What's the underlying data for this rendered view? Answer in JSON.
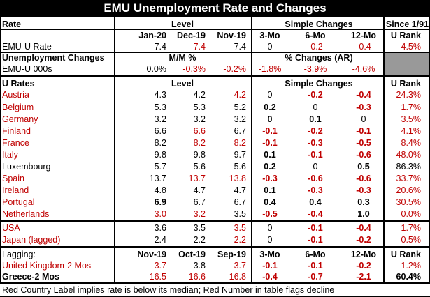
{
  "title": "EMU Unemployment Rate and Changes",
  "colors": {
    "red": "#c00000",
    "black": "#000000",
    "header_bg": "#000000",
    "gray_cell": "#999999"
  },
  "rows": [
    {
      "y": 27,
      "cells": [
        {
          "t": "Rate",
          "b": true
        },
        {
          "t": "Level",
          "b": true,
          "hdr": "level"
        },
        {
          "t": "Simple Changes",
          "b": true,
          "hdr": "simple"
        },
        {
          "t": "Since 1/91",
          "b": true,
          "hdr": "rank"
        }
      ]
    },
    {
      "y": 43,
      "cells": [
        {
          "t": "",
          "col": 0
        },
        {
          "t": "Jan-20",
          "b": true,
          "col": 1
        },
        {
          "t": "Dec-19",
          "b": true,
          "col": 2
        },
        {
          "t": "Nov-19",
          "b": true,
          "col": 3
        },
        {
          "t": "3-Mo",
          "b": true,
          "col": 4
        },
        {
          "t": "6-Mo",
          "b": true,
          "col": 5
        },
        {
          "t": "12-Mo",
          "b": true,
          "col": 6
        },
        {
          "t": "U Rank",
          "b": true,
          "col": 7
        }
      ]
    },
    {
      "y": 59,
      "cells": [
        {
          "t": "EMU-U Rate",
          "col": 0
        },
        {
          "t": "7.4",
          "col": 1
        },
        {
          "t": "7.4",
          "r": true,
          "col": 2
        },
        {
          "t": "7.4",
          "col": 3
        },
        {
          "t": "0",
          "col": 4
        },
        {
          "t": "-0.2",
          "r": true,
          "col": 5
        },
        {
          "t": "-0.4",
          "r": true,
          "col": 6
        },
        {
          "t": "4.5%",
          "r": true,
          "col": 7
        }
      ]
    },
    {
      "y": 75,
      "cells": [
        {
          "t": "Unemployment Changes",
          "b": true,
          "col": 0
        },
        {
          "t": "M/M %",
          "b": true,
          "hdr": "level"
        },
        {
          "t": "% Changes (AR)",
          "b": true,
          "hdr": "simple"
        }
      ]
    },
    {
      "y": 91,
      "cells": [
        {
          "t": "EMU-U 000s",
          "col": 0
        },
        {
          "t": "0.0%",
          "col": 1
        },
        {
          "t": "-0.3%",
          "r": true,
          "col": 2
        },
        {
          "t": "-0.2%",
          "r": true,
          "col": 3
        },
        {
          "t": "-1.8%",
          "r": true,
          "col": 4
        },
        {
          "t": "-3.9%",
          "r": true,
          "col": 5
        },
        {
          "t": "-4.6%",
          "r": true,
          "col": 6
        }
      ]
    },
    {
      "y": 112,
      "cells": [
        {
          "t": "U Rates",
          "b": true,
          "col": 0
        },
        {
          "t": "Level",
          "b": true,
          "hdr": "level"
        },
        {
          "t": "Simple Changes",
          "b": true,
          "hdr": "simple"
        },
        {
          "t": "U Rank",
          "b": true,
          "col": 7
        }
      ]
    },
    {
      "y": 128,
      "cells": [
        {
          "t": "Austria",
          "r": true,
          "col": 0
        },
        {
          "t": "4.3",
          "col": 1
        },
        {
          "t": "4.2",
          "col": 2
        },
        {
          "t": "4.2",
          "r": true,
          "col": 3
        },
        {
          "t": "0",
          "col": 4
        },
        {
          "t": "-0.2",
          "r": true,
          "b": true,
          "col": 5
        },
        {
          "t": "-0.4",
          "r": true,
          "b": true,
          "col": 6
        },
        {
          "t": "24.3%",
          "r": true,
          "col": 7
        }
      ]
    },
    {
      "y": 146,
      "cells": [
        {
          "t": "Belgium",
          "r": true,
          "col": 0
        },
        {
          "t": "5.3",
          "col": 1
        },
        {
          "t": "5.3",
          "col": 2
        },
        {
          "t": "5.2",
          "col": 3
        },
        {
          "t": "0.2",
          "b": true,
          "col": 4
        },
        {
          "t": "0",
          "col": 5
        },
        {
          "t": "-0.3",
          "r": true,
          "b": true,
          "col": 6
        },
        {
          "t": "1.7%",
          "r": true,
          "col": 7
        }
      ]
    },
    {
      "y": 163,
      "cells": [
        {
          "t": "Germany",
          "r": true,
          "col": 0
        },
        {
          "t": "3.2",
          "col": 1
        },
        {
          "t": "3.2",
          "col": 2
        },
        {
          "t": "3.2",
          "col": 3
        },
        {
          "t": "0",
          "b": true,
          "col": 4
        },
        {
          "t": "0.1",
          "b": true,
          "col": 5
        },
        {
          "t": "0",
          "col": 6
        },
        {
          "t": "3.5%",
          "r": true,
          "col": 7
        }
      ]
    },
    {
      "y": 180,
      "cells": [
        {
          "t": "Finland",
          "r": true,
          "col": 0
        },
        {
          "t": "6.6",
          "col": 1
        },
        {
          "t": "6.6",
          "r": true,
          "col": 2
        },
        {
          "t": "6.7",
          "col": 3
        },
        {
          "t": "-0.1",
          "r": true,
          "b": true,
          "col": 4
        },
        {
          "t": "-0.2",
          "r": true,
          "b": true,
          "col": 5
        },
        {
          "t": "-0.1",
          "r": true,
          "b": true,
          "col": 6
        },
        {
          "t": "4.1%",
          "r": true,
          "col": 7
        }
      ]
    },
    {
      "y": 197,
      "cells": [
        {
          "t": "France",
          "r": true,
          "col": 0
        },
        {
          "t": "8.2",
          "col": 1
        },
        {
          "t": "8.2",
          "r": true,
          "col": 2
        },
        {
          "t": "8.2",
          "r": true,
          "col": 3
        },
        {
          "t": "-0.1",
          "r": true,
          "b": true,
          "col": 4
        },
        {
          "t": "-0.3",
          "r": true,
          "b": true,
          "col": 5
        },
        {
          "t": "-0.5",
          "r": true,
          "b": true,
          "col": 6
        },
        {
          "t": "8.4%",
          "r": true,
          "col": 7
        }
      ]
    },
    {
      "y": 214,
      "cells": [
        {
          "t": "Italy",
          "r": true,
          "col": 0
        },
        {
          "t": "9.8",
          "col": 1
        },
        {
          "t": "9.8",
          "col": 2
        },
        {
          "t": "9.7",
          "col": 3
        },
        {
          "t": "0.1",
          "b": true,
          "col": 4
        },
        {
          "t": "-0.1",
          "r": true,
          "b": true,
          "col": 5
        },
        {
          "t": "-0.6",
          "r": true,
          "b": true,
          "col": 6
        },
        {
          "t": "48.0%",
          "r": true,
          "col": 7
        }
      ]
    },
    {
      "y": 231,
      "cells": [
        {
          "t": "Luxembourg",
          "col": 0
        },
        {
          "t": "5.7",
          "col": 1
        },
        {
          "t": "5.6",
          "col": 2
        },
        {
          "t": "5.6",
          "col": 3
        },
        {
          "t": "0.2",
          "b": true,
          "col": 4
        },
        {
          "t": "0",
          "col": 5
        },
        {
          "t": "0.5",
          "b": true,
          "col": 6
        },
        {
          "t": "86.3%",
          "col": 7
        }
      ]
    },
    {
      "y": 248,
      "cells": [
        {
          "t": "Spain",
          "r": true,
          "col": 0
        },
        {
          "t": "13.7",
          "col": 1
        },
        {
          "t": "13.7",
          "r": true,
          "col": 2
        },
        {
          "t": "13.8",
          "r": true,
          "col": 3
        },
        {
          "t": "-0.3",
          "r": true,
          "b": true,
          "col": 4
        },
        {
          "t": "-0.6",
          "r": true,
          "b": true,
          "col": 5
        },
        {
          "t": "-0.6",
          "r": true,
          "b": true,
          "col": 6
        },
        {
          "t": "33.7%",
          "r": true,
          "col": 7
        }
      ]
    },
    {
      "y": 265,
      "cells": [
        {
          "t": "Ireland",
          "r": true,
          "col": 0
        },
        {
          "t": "4.8",
          "col": 1
        },
        {
          "t": "4.7",
          "col": 2
        },
        {
          "t": "4.7",
          "col": 3
        },
        {
          "t": "0.1",
          "b": true,
          "col": 4
        },
        {
          "t": "-0.3",
          "r": true,
          "b": true,
          "col": 5
        },
        {
          "t": "-0.3",
          "r": true,
          "b": true,
          "col": 6
        },
        {
          "t": "20.6%",
          "r": true,
          "col": 7
        }
      ]
    },
    {
      "y": 282,
      "cells": [
        {
          "t": "Portugal",
          "r": true,
          "col": 0
        },
        {
          "t": "6.9",
          "b": true,
          "col": 1
        },
        {
          "t": "6.7",
          "col": 2
        },
        {
          "t": "6.7",
          "col": 3
        },
        {
          "t": "0.4",
          "b": true,
          "col": 4
        },
        {
          "t": "0.4",
          "b": true,
          "col": 5
        },
        {
          "t": "0.3",
          "b": true,
          "col": 6
        },
        {
          "t": "30.5%",
          "r": true,
          "col": 7
        }
      ]
    },
    {
      "y": 299,
      "cells": [
        {
          "t": "Netherlands",
          "r": true,
          "col": 0
        },
        {
          "t": "3.0",
          "r": true,
          "col": 1
        },
        {
          "t": "3.2",
          "r": true,
          "col": 2
        },
        {
          "t": "3.5",
          "col": 3
        },
        {
          "t": "-0.5",
          "r": true,
          "b": true,
          "col": 4
        },
        {
          "t": "-0.4",
          "r": true,
          "b": true,
          "col": 5
        },
        {
          "t": "1.0",
          "b": true,
          "col": 6
        },
        {
          "t": "0.0%",
          "r": true,
          "col": 7
        }
      ]
    },
    {
      "y": 319,
      "cells": [
        {
          "t": "USA",
          "r": true,
          "col": 0
        },
        {
          "t": "3.6",
          "col": 1
        },
        {
          "t": "3.5",
          "col": 2
        },
        {
          "t": "3.5",
          "r": true,
          "col": 3
        },
        {
          "t": "0",
          "col": 4
        },
        {
          "t": "-0.1",
          "r": true,
          "b": true,
          "col": 5
        },
        {
          "t": "-0.4",
          "r": true,
          "b": true,
          "col": 6
        },
        {
          "t": "1.7%",
          "r": true,
          "col": 7
        }
      ]
    },
    {
      "y": 336,
      "cells": [
        {
          "t": "Japan (lagged)",
          "r": true,
          "col": 0
        },
        {
          "t": "2.4",
          "col": 1
        },
        {
          "t": "2.2",
          "col": 2
        },
        {
          "t": "2.2",
          "r": true,
          "col": 3
        },
        {
          "t": "0",
          "col": 4
        },
        {
          "t": "-0.1",
          "r": true,
          "b": true,
          "col": 5
        },
        {
          "t": "-0.2",
          "r": true,
          "b": true,
          "col": 6
        },
        {
          "t": "0.5%",
          "r": true,
          "col": 7
        }
      ]
    },
    {
      "y": 357,
      "cells": [
        {
          "t": "Lagging:",
          "col": 0
        },
        {
          "t": "Nov-19",
          "b": true,
          "col": 1
        },
        {
          "t": "Oct-19",
          "b": true,
          "col": 2
        },
        {
          "t": "Sep-19",
          "b": true,
          "col": 3
        },
        {
          "t": "3-Mo",
          "b": true,
          "col": 4
        },
        {
          "t": "6-Mo",
          "b": true,
          "col": 5
        },
        {
          "t": "12-Mo",
          "b": true,
          "col": 6
        },
        {
          "t": "U Rank",
          "b": true,
          "col": 7
        }
      ]
    },
    {
      "y": 373,
      "cells": [
        {
          "t": "United Kingdom-2 Mos",
          "r": true,
          "col": 0
        },
        {
          "t": "3.7",
          "r": true,
          "col": 1
        },
        {
          "t": "3.8",
          "col": 2
        },
        {
          "t": "3.7",
          "r": true,
          "col": 3
        },
        {
          "t": "-0.1",
          "r": true,
          "b": true,
          "col": 4
        },
        {
          "t": "-0.1",
          "r": true,
          "b": true,
          "col": 5
        },
        {
          "t": "-0.2",
          "r": true,
          "b": true,
          "col": 6
        },
        {
          "t": "1.2%",
          "r": true,
          "col": 7
        }
      ]
    },
    {
      "y": 389,
      "cells": [
        {
          "t": "Greece-2 Mos",
          "b": true,
          "col": 0
        },
        {
          "t": "16.5",
          "r": true,
          "col": 1
        },
        {
          "t": "16.6",
          "r": true,
          "col": 2
        },
        {
          "t": "16.8",
          "r": true,
          "col": 3
        },
        {
          "t": "-0.4",
          "r": true,
          "b": true,
          "col": 4
        },
        {
          "t": "-0.7",
          "r": true,
          "b": true,
          "col": 5
        },
        {
          "t": "-2.1",
          "r": true,
          "b": true,
          "col": 6
        },
        {
          "t": "60.4%",
          "b": true,
          "col": 7
        }
      ]
    }
  ],
  "footer": "Red Country Label implies rate is below its median; Red Number in table flags decline"
}
